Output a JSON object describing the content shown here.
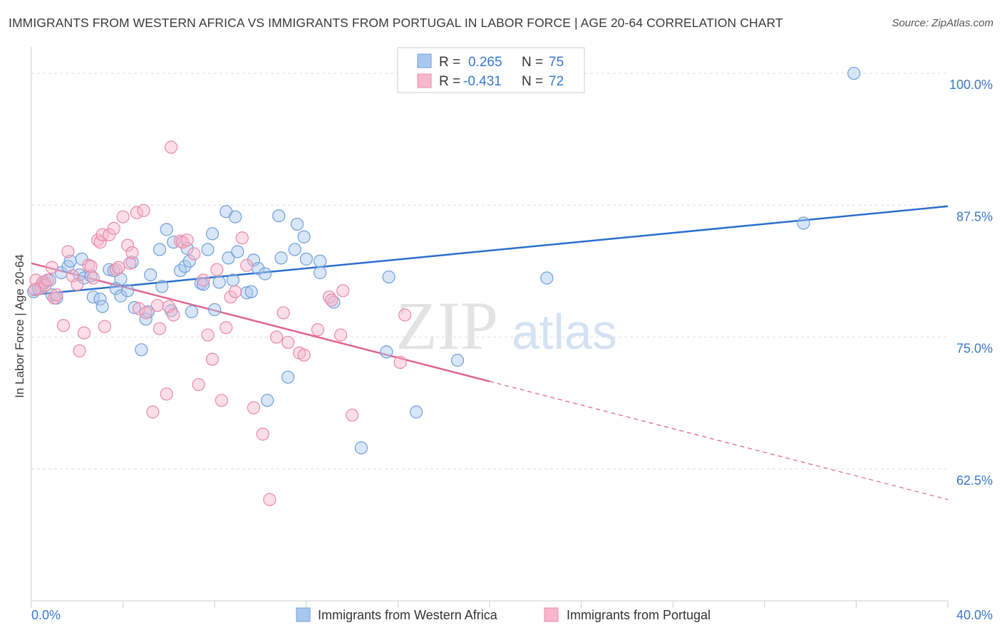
{
  "title": "IMMIGRANTS FROM WESTERN AFRICA VS IMMIGRANTS FROM PORTUGAL IN LABOR FORCE | AGE 20-64 CORRELATION CHART",
  "source": "Source: ZipAtlas.com",
  "watermark": {
    "zip": "ZIP",
    "atlas": "atlas"
  },
  "legend_box": {
    "rows": [
      {
        "r_label": "R = ",
        "r_value": "0.265",
        "n_label": "N = ",
        "n_value": "75"
      },
      {
        "r_label": "R = ",
        "r_value": "-0.431",
        "n_label": "N = ",
        "n_value": "72"
      }
    ]
  },
  "colors": {
    "blue_fill": "#a9c8f0",
    "blue_stroke": "#6f9fd8",
    "blue_line": "#2a6fcf",
    "pink_fill": "#f6b6cb",
    "pink_stroke": "#e889a8",
    "pink_line": "#e06690",
    "tick_blue": "#3a78cc",
    "grid": "#dddddd"
  },
  "chart_data": {
    "type": "scatter",
    "xlabel": "",
    "ylabel": "In Labor Force | Age 20-64",
    "xlim": [
      0,
      40
    ],
    "ylim": [
      50,
      102.5
    ],
    "x_tick_labels": [
      {
        "value": 0,
        "label": "0.0%"
      },
      {
        "value": 40,
        "label": "40.0%"
      }
    ],
    "y_ticks": [
      {
        "value": 62.5,
        "label": "62.5%"
      },
      {
        "value": 75.0,
        "label": "75.0%"
      },
      {
        "value": 87.5,
        "label": "87.5%"
      },
      {
        "value": 100.0,
        "label": "100.0%"
      }
    ],
    "grid": "horizontal dashed",
    "legend_position": "bottom",
    "series": [
      {
        "name": "Immigrants from Western Africa",
        "R": 0.265,
        "N": 75,
        "trend": {
          "x": [
            0,
            40
          ],
          "y": [
            79.0,
            87.4
          ]
        },
        "points": [
          [
            0.1,
            79.3
          ],
          [
            0.4,
            79.8
          ],
          [
            0.6,
            80.2
          ],
          [
            0.8,
            80.4
          ],
          [
            0.5,
            80.0
          ],
          [
            0.3,
            79.6
          ],
          [
            0.9,
            79.0
          ],
          [
            1.1,
            78.7
          ],
          [
            1.3,
            81.1
          ],
          [
            1.6,
            81.7
          ],
          [
            1.7,
            82.2
          ],
          [
            2.1,
            80.9
          ],
          [
            2.2,
            82.4
          ],
          [
            2.3,
            80.6
          ],
          [
            2.6,
            80.8
          ],
          [
            2.7,
            78.8
          ],
          [
            3.0,
            78.6
          ],
          [
            3.1,
            77.9
          ],
          [
            3.4,
            81.4
          ],
          [
            3.6,
            81.3
          ],
          [
            3.7,
            79.6
          ],
          [
            3.9,
            80.5
          ],
          [
            3.9,
            78.9
          ],
          [
            4.2,
            79.4
          ],
          [
            4.4,
            82.1
          ],
          [
            4.5,
            77.8
          ],
          [
            4.8,
            73.8
          ],
          [
            5.0,
            76.7
          ],
          [
            5.1,
            77.4
          ],
          [
            5.2,
            80.9
          ],
          [
            5.6,
            83.3
          ],
          [
            5.7,
            79.8
          ],
          [
            5.9,
            85.2
          ],
          [
            6.1,
            77.5
          ],
          [
            6.2,
            84.0
          ],
          [
            6.5,
            81.3
          ],
          [
            6.7,
            81.7
          ],
          [
            6.8,
            83.4
          ],
          [
            6.9,
            82.2
          ],
          [
            7.0,
            77.4
          ],
          [
            7.4,
            80.1
          ],
          [
            7.5,
            80.0
          ],
          [
            7.7,
            83.3
          ],
          [
            7.9,
            84.8
          ],
          [
            8.0,
            77.6
          ],
          [
            8.2,
            80.2
          ],
          [
            8.5,
            86.9
          ],
          [
            8.6,
            82.5
          ],
          [
            8.8,
            80.4
          ],
          [
            8.9,
            86.4
          ],
          [
            9.0,
            83.1
          ],
          [
            9.4,
            79.2
          ],
          [
            9.6,
            79.3
          ],
          [
            9.7,
            82.3
          ],
          [
            9.9,
            81.5
          ],
          [
            10.2,
            81.0
          ],
          [
            10.3,
            69.0
          ],
          [
            10.8,
            86.5
          ],
          [
            10.9,
            82.5
          ],
          [
            11.2,
            71.2
          ],
          [
            11.5,
            83.3
          ],
          [
            11.6,
            85.7
          ],
          [
            11.9,
            84.5
          ],
          [
            12.0,
            82.4
          ],
          [
            12.6,
            82.2
          ],
          [
            12.6,
            81.1
          ],
          [
            13.2,
            78.3
          ],
          [
            14.4,
            64.5
          ],
          [
            15.5,
            73.6
          ],
          [
            15.6,
            80.7
          ],
          [
            16.8,
            67.9
          ],
          [
            18.6,
            72.8
          ],
          [
            22.5,
            80.6
          ],
          [
            33.7,
            85.8
          ],
          [
            35.9,
            100.0
          ]
        ]
      },
      {
        "name": "Immigrants from Portugal",
        "R": -0.431,
        "N": 72,
        "trend": {
          "x": [
            0,
            40
          ],
          "y": [
            82.0,
            59.6
          ],
          "solid_until_x": 20
        },
        "points": [
          [
            0.2,
            80.4
          ],
          [
            0.4,
            79.6
          ],
          [
            0.5,
            80.2
          ],
          [
            0.6,
            79.9
          ],
          [
            0.7,
            80.4
          ],
          [
            0.9,
            81.6
          ],
          [
            1.0,
            78.7
          ],
          [
            1.1,
            79.0
          ],
          [
            1.4,
            76.1
          ],
          [
            1.6,
            83.1
          ],
          [
            1.8,
            80.8
          ],
          [
            2.0,
            80.0
          ],
          [
            2.1,
            73.7
          ],
          [
            2.3,
            75.4
          ],
          [
            2.5,
            81.8
          ],
          [
            2.6,
            81.7
          ],
          [
            2.7,
            80.6
          ],
          [
            2.9,
            84.2
          ],
          [
            3.0,
            84.0
          ],
          [
            3.1,
            84.7
          ],
          [
            3.2,
            76.0
          ],
          [
            3.4,
            84.7
          ],
          [
            3.6,
            85.3
          ],
          [
            3.7,
            81.4
          ],
          [
            3.8,
            81.6
          ],
          [
            4.0,
            86.4
          ],
          [
            4.2,
            83.7
          ],
          [
            4.3,
            82.0
          ],
          [
            4.4,
            83.0
          ],
          [
            4.6,
            86.8
          ],
          [
            4.7,
            77.7
          ],
          [
            4.9,
            87.0
          ],
          [
            5.0,
            77.3
          ],
          [
            5.3,
            67.9
          ],
          [
            5.5,
            78.0
          ],
          [
            5.6,
            75.8
          ],
          [
            5.9,
            69.6
          ],
          [
            6.0,
            77.9
          ],
          [
            6.1,
            93.0
          ],
          [
            6.2,
            77.1
          ],
          [
            6.5,
            84.1
          ],
          [
            6.6,
            84.0
          ],
          [
            6.8,
            84.2
          ],
          [
            7.1,
            82.9
          ],
          [
            7.3,
            70.5
          ],
          [
            7.5,
            80.4
          ],
          [
            7.7,
            75.2
          ],
          [
            7.9,
            72.9
          ],
          [
            8.1,
            81.4
          ],
          [
            8.3,
            69.0
          ],
          [
            8.5,
            75.9
          ],
          [
            8.7,
            78.8
          ],
          [
            8.9,
            79.3
          ],
          [
            9.2,
            84.4
          ],
          [
            9.4,
            81.8
          ],
          [
            9.7,
            68.3
          ],
          [
            10.1,
            65.8
          ],
          [
            10.4,
            59.6
          ],
          [
            10.7,
            75.0
          ],
          [
            11.0,
            77.3
          ],
          [
            11.2,
            74.5
          ],
          [
            11.7,
            73.5
          ],
          [
            11.9,
            73.3
          ],
          [
            12.5,
            75.7
          ],
          [
            13.0,
            78.8
          ],
          [
            13.1,
            78.5
          ],
          [
            13.5,
            75.2
          ],
          [
            13.6,
            79.4
          ],
          [
            14.0,
            67.6
          ],
          [
            16.1,
            72.6
          ],
          [
            16.3,
            77.1
          ],
          [
            0.15,
            79.5
          ]
        ]
      }
    ]
  }
}
